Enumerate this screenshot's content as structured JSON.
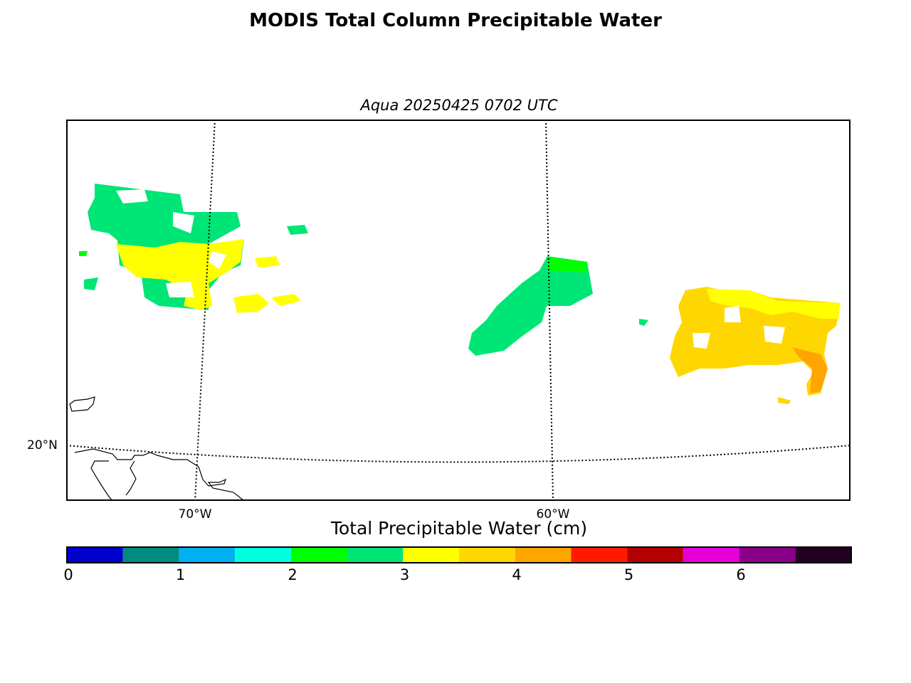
{
  "title": "MODIS Total Column Precipitable Water",
  "subtitle": "Aqua 20250425 0702 UTC",
  "map": {
    "lat_label": "20°N",
    "lon_labels": [
      "70°W",
      "60°W"
    ]
  },
  "colorbar": {
    "label": "Total Precipitable Water (cm)",
    "ticks": [
      "0",
      "1",
      "2",
      "3",
      "4",
      "5",
      "6"
    ],
    "colors": [
      "#0000cc",
      "#008b80",
      "#00b0f0",
      "#00ffe0",
      "#00ff00",
      "#00e676",
      "#ffff00",
      "#ffd700",
      "#ffa500",
      "#ff1a00",
      "#b30000",
      "#e600d8",
      "#8b008b",
      "#220022"
    ]
  }
}
